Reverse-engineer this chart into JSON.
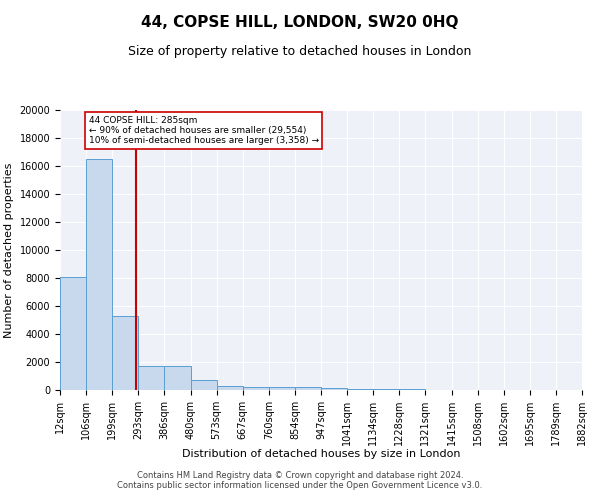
{
  "title": "44, COPSE HILL, LONDON, SW20 0HQ",
  "subtitle": "Size of property relative to detached houses in London",
  "xlabel": "Distribution of detached houses by size in London",
  "ylabel": "Number of detached properties",
  "bin_edges": [
    12,
    106,
    199,
    293,
    386,
    480,
    573,
    667,
    760,
    854,
    947,
    1041,
    1134,
    1228,
    1321,
    1415,
    1508,
    1602,
    1695,
    1789,
    1882
  ],
  "bin_labels": [
    "12sqm",
    "106sqm",
    "199sqm",
    "293sqm",
    "386sqm",
    "480sqm",
    "573sqm",
    "667sqm",
    "760sqm",
    "854sqm",
    "947sqm",
    "1041sqm",
    "1134sqm",
    "1228sqm",
    "1321sqm",
    "1415sqm",
    "1508sqm",
    "1602sqm",
    "1695sqm",
    "1789sqm",
    "1882sqm"
  ],
  "bar_heights": [
    8100,
    16500,
    5300,
    1750,
    1750,
    700,
    300,
    250,
    200,
    200,
    150,
    100,
    50,
    50,
    30,
    20,
    20,
    15,
    15,
    10,
    5
  ],
  "bar_color": "#c8d9ee",
  "bar_edge_color": "#5a9fd4",
  "red_line_x": 285,
  "red_line_color": "#cc0000",
  "annotation_text": "44 COPSE HILL: 285sqm\n← 90% of detached houses are smaller (29,554)\n10% of semi-detached houses are larger (3,358) →",
  "annotation_box_color": "white",
  "annotation_box_edge_color": "#cc0000",
  "ylim": [
    0,
    20000
  ],
  "yticks": [
    0,
    2000,
    4000,
    6000,
    8000,
    10000,
    12000,
    14000,
    16000,
    18000,
    20000
  ],
  "background_color": "#eef2f8",
  "footer_text": "Contains HM Land Registry data © Crown copyright and database right 2024.\nContains public sector information licensed under the Open Government Licence v3.0.",
  "title_fontsize": 11,
  "subtitle_fontsize": 9,
  "axis_fontsize": 8,
  "tick_fontsize": 7,
  "footer_fontsize": 6
}
